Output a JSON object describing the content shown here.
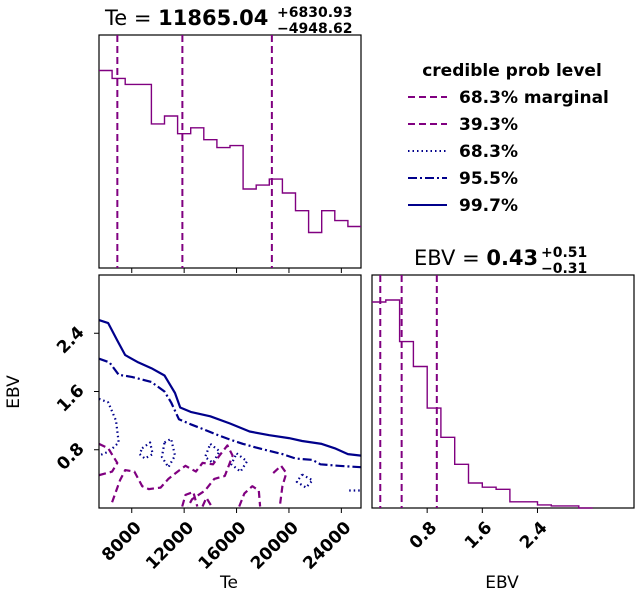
{
  "chart_data": [
    {
      "id": "te-hist",
      "type": "histogram",
      "title_var": "Te = ",
      "title_value": "11865.04",
      "title_plus": "+6830.93",
      "title_minus": "−4948.62",
      "x_range": [
        5500,
        25500
      ],
      "y_range": [
        0,
        1.18
      ],
      "bin_edges": [
        5500,
        6500,
        7500,
        8500,
        9500,
        10500,
        11500,
        12500,
        13500,
        14500,
        15500,
        16500,
        17500,
        18500,
        19500,
        20500,
        21500,
        22500,
        23500,
        24500,
        25500
      ],
      "counts": [
        1.0,
        0.96,
        0.93,
        0.93,
        0.73,
        0.77,
        0.68,
        0.71,
        0.65,
        0.61,
        0.62,
        0.4,
        0.42,
        0.45,
        0.38,
        0.29,
        0.18,
        0.29,
        0.24,
        0.21
      ],
      "quantile_lines": [
        6900,
        11865.04,
        18695.97
      ],
      "line_color": "#800080"
    },
    {
      "id": "ebv-hist",
      "type": "histogram",
      "title_var": "EBV = ",
      "title_value": "0.43",
      "title_plus": "+0.51",
      "title_minus": "−0.31",
      "x_range": [
        0,
        3.8
      ],
      "x_ticks": [
        0.8,
        1.6,
        2.4
      ],
      "x_tick_labels": [
        "0.8",
        "1.6",
        "2.4"
      ],
      "xlabel": "EBV",
      "y_range": [
        0,
        1.12
      ],
      "bin_edges": [
        0.0,
        0.2,
        0.4,
        0.6,
        0.8,
        1.0,
        1.2,
        1.4,
        1.6,
        1.8,
        2.0,
        2.2,
        2.4,
        2.6,
        2.8,
        3.0,
        3.2
      ],
      "counts": [
        0.99,
        1.0,
        0.8,
        0.68,
        0.48,
        0.34,
        0.21,
        0.12,
        0.1,
        0.09,
        0.03,
        0.03,
        0.015,
        0.01,
        0.01,
        0.0
      ],
      "quantile_lines": [
        0.12,
        0.43,
        0.94
      ],
      "line_color": "#800080"
    },
    {
      "id": "contour",
      "type": "contour",
      "x_range": [
        5500,
        25500
      ],
      "y_range": [
        0,
        3.2
      ],
      "x_ticks": [
        8000,
        12000,
        16000,
        20000,
        24000
      ],
      "x_tick_labels": [
        "8000",
        "12000",
        "16000",
        "20000",
        "24000"
      ],
      "y_ticks": [
        0.8,
        1.6,
        2.4
      ],
      "y_tick_labels": [
        "0.8",
        "1.6",
        "2.4"
      ],
      "xlabel": "Te",
      "ylabel": "EBV",
      "levels": [
        {
          "label": "99.7%",
          "color": "#00008b",
          "dash": "solid",
          "curves": [
            [
              [
                5500,
                2.58
              ],
              [
                6200,
                2.54
              ],
              [
                6900,
                2.3
              ],
              [
                7500,
                2.1
              ],
              [
                8500,
                2.0
              ],
              [
                9500,
                1.92
              ],
              [
                10500,
                1.82
              ],
              [
                11300,
                1.58
              ],
              [
                11700,
                1.38
              ],
              [
                12500,
                1.32
              ],
              [
                14000,
                1.26
              ],
              [
                15500,
                1.16
              ],
              [
                17000,
                1.05
              ],
              [
                18500,
                1.0
              ],
              [
                20000,
                0.96
              ],
              [
                21000,
                0.92
              ],
              [
                22500,
                0.88
              ],
              [
                23500,
                0.82
              ],
              [
                24500,
                0.74
              ],
              [
                25500,
                0.72
              ]
            ]
          ]
        },
        {
          "label": "95.5%",
          "color": "#00008b",
          "dash": "dashdot",
          "curves": [
            [
              [
                5500,
                2.05
              ],
              [
                6300,
                2.0
              ],
              [
                7000,
                1.83
              ],
              [
                8000,
                1.8
              ],
              [
                9500,
                1.73
              ],
              [
                10500,
                1.6
              ],
              [
                11000,
                1.45
              ],
              [
                11600,
                1.22
              ],
              [
                12500,
                1.15
              ],
              [
                13500,
                1.08
              ],
              [
                14600,
                1.0
              ],
              [
                15500,
                0.94
              ],
              [
                16500,
                0.88
              ],
              [
                17500,
                0.83
              ],
              [
                18600,
                0.78
              ],
              [
                19500,
                0.74
              ],
              [
                20500,
                0.68
              ],
              [
                21800,
                0.66
              ],
              [
                22400,
                0.6
              ],
              [
                23800,
                0.58
              ],
              [
                25500,
                0.56
              ]
            ]
          ]
        },
        {
          "label": "68.3%",
          "color": "#00008b",
          "dash": "dotted",
          "curves": [
            [
              [
                5500,
                1.5
              ],
              [
                6200,
                1.45
              ],
              [
                6800,
                1.2
              ],
              [
                7000,
                0.9
              ],
              [
                6300,
                0.78
              ],
              [
                5500,
                0.72
              ]
            ],
            [
              [
                8800,
                0.82
              ],
              [
                9400,
                0.9
              ],
              [
                9600,
                0.74
              ],
              [
                9000,
                0.68
              ],
              [
                8600,
                0.74
              ],
              [
                8800,
                0.82
              ]
            ],
            [
              [
                10500,
                0.9
              ],
              [
                11000,
                0.95
              ],
              [
                11300,
                0.72
              ],
              [
                10800,
                0.56
              ],
              [
                10300,
                0.7
              ],
              [
                10500,
                0.9
              ]
            ],
            [
              [
                14000,
                0.88
              ],
              [
                14700,
                0.78
              ],
              [
                14200,
                0.62
              ],
              [
                13600,
                0.7
              ],
              [
                14000,
                0.88
              ]
            ],
            [
              [
                16000,
                0.75
              ],
              [
                16800,
                0.64
              ],
              [
                16300,
                0.5
              ],
              [
                15600,
                0.6
              ],
              [
                16000,
                0.75
              ]
            ],
            [
              [
                21000,
                0.46
              ],
              [
                21800,
                0.38
              ],
              [
                21300,
                0.28
              ],
              [
                20600,
                0.36
              ],
              [
                21000,
                0.46
              ]
            ],
            [
              [
                24600,
                0.24
              ],
              [
                25500,
                0.24
              ]
            ]
          ]
        },
        {
          "label": "39.3%",
          "color": "#800080",
          "dash": "dashed",
          "curves": [
            [
              [
                5500,
                0.88
              ],
              [
                6200,
                0.82
              ],
              [
                6900,
                0.62
              ],
              [
                6500,
                0.5
              ],
              [
                5500,
                0.45
              ]
            ],
            [
              [
                6500,
                0.08
              ],
              [
                7100,
                0.38
              ],
              [
                7500,
                0.52
              ],
              [
                8200,
                0.5
              ],
              [
                8800,
                0.3
              ],
              [
                9300,
                0.26
              ],
              [
                10200,
                0.28
              ],
              [
                10800,
                0.4
              ],
              [
                11500,
                0.5
              ],
              [
                12100,
                0.58
              ],
              [
                12900,
                0.5
              ],
              [
                13400,
                0.62
              ],
              [
                14200,
                0.6
              ],
              [
                14700,
                0.72
              ],
              [
                15300,
                0.86
              ],
              [
                15700,
                0.72
              ],
              [
                15100,
                0.44
              ],
              [
                14300,
                0.4
              ],
              [
                13600,
                0.24
              ],
              [
                12600,
                0.12
              ],
              [
                12300,
                0.02
              ]
            ],
            [
              [
                18800,
                0.48
              ],
              [
                19400,
                0.58
              ],
              [
                19800,
                0.48
              ],
              [
                19500,
                0.3
              ],
              [
                19300,
                0.02
              ]
            ],
            [
              [
                16200,
                0.02
              ],
              [
                16600,
                0.2
              ],
              [
                17200,
                0.3
              ],
              [
                17700,
                0.24
              ],
              [
                17800,
                0.02
              ]
            ]
          ]
        },
        {
          "label": "68.3% marginal",
          "color": "#800080",
          "dash": "dashed",
          "curves": [
            [
              [
                11850,
                0.02
              ],
              [
                12100,
                0.18
              ],
              [
                12700,
                0.22
              ],
              [
                13000,
                0.02
              ]
            ],
            [
              [
                13400,
                0.02
              ],
              [
                13700,
                0.14
              ],
              [
                14100,
                0.02
              ]
            ]
          ]
        }
      ]
    }
  ],
  "legend": {
    "title": "credible prob level",
    "entries": [
      {
        "label": "68.3% marginal",
        "color": "#800080",
        "dash": "dashed"
      },
      {
        "label": "39.3%",
        "color": "#800080",
        "dash": "dashed"
      },
      {
        "label": "68.3%",
        "color": "#00008b",
        "dash": "dotted"
      },
      {
        "label": "95.5%",
        "color": "#00008b",
        "dash": "dashdot"
      },
      {
        "label": "99.7%",
        "color": "#00008b",
        "dash": "solid"
      }
    ]
  }
}
